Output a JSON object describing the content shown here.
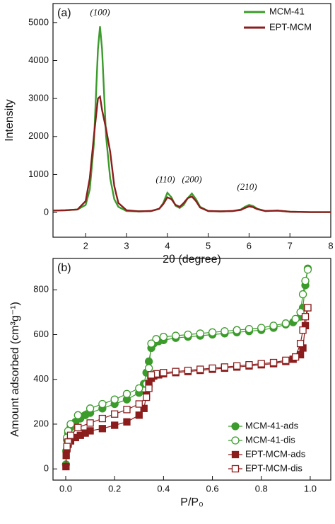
{
  "chart_data": [
    {
      "type": "line",
      "panel_label": "(a)",
      "x_label": "2θ (degree)",
      "y_label": "Intensity",
      "xlim": [
        1.2,
        8
      ],
      "ylim": [
        -650,
        5500
      ],
      "xticks": [
        2,
        3,
        4,
        5,
        6,
        7,
        8
      ],
      "yticks": [
        0,
        1000,
        2000,
        3000,
        4000,
        5000
      ],
      "legend": "upper right",
      "annotations": [
        {
          "text": "(100)",
          "x": 2.35,
          "y": 5250
        },
        {
          "text": "(110)",
          "x": 3.95,
          "y": 850
        },
        {
          "text": "(200)",
          "x": 4.6,
          "y": 850
        },
        {
          "text": "(210)",
          "x": 5.95,
          "y": 650
        }
      ],
      "x": [
        1.2,
        1.5,
        1.8,
        2.0,
        2.1,
        2.2,
        2.3,
        2.35,
        2.4,
        2.5,
        2.6,
        2.7,
        2.8,
        3.0,
        3.3,
        3.6,
        3.8,
        3.9,
        4.0,
        4.1,
        4.2,
        4.3,
        4.4,
        4.5,
        4.6,
        4.7,
        4.8,
        5.0,
        5.3,
        5.6,
        5.8,
        5.9,
        6.0,
        6.1,
        6.2,
        6.4,
        6.7,
        7.0,
        7.5,
        8.0
      ],
      "series": [
        {
          "name": "MCM-41",
          "color": "#3b9b2b",
          "values": [
            50,
            60,
            80,
            200,
            600,
            1800,
            4300,
            4900,
            4300,
            2000,
            900,
            350,
            150,
            40,
            30,
            40,
            100,
            250,
            520,
            400,
            180,
            120,
            200,
            380,
            500,
            350,
            150,
            40,
            30,
            40,
            80,
            150,
            200,
            170,
            100,
            40,
            50,
            20,
            10,
            10
          ]
        },
        {
          "name": "EPT-MCM",
          "color": "#8b1d1d",
          "values": [
            50,
            60,
            80,
            300,
            900,
            2000,
            3000,
            3050,
            2700,
            2200,
            1600,
            700,
            250,
            60,
            30,
            40,
            100,
            220,
            400,
            350,
            200,
            150,
            250,
            380,
            420,
            300,
            130,
            40,
            30,
            40,
            70,
            120,
            160,
            140,
            90,
            40,
            50,
            20,
            10,
            10
          ]
        }
      ]
    },
    {
      "type": "scatter",
      "panel_label": "(b)",
      "x_label": "P/P₀",
      "y_label": "Amount adsorbed (cm³g⁻¹)",
      "xlim": [
        -0.052,
        1.084
      ],
      "ylim": [
        -50,
        940
      ],
      "xticks": [
        {
          "value": 0,
          "label": "0.0"
        },
        0.2,
        0.4,
        0.6,
        0.8,
        {
          "value": 1,
          "label": "1.0"
        }
      ],
      "yticks": [
        0,
        200,
        400,
        600,
        800
      ],
      "legend": "lower right",
      "series": [
        {
          "name": "MCM-41-ads",
          "color": "#3b9b2b",
          "marker": "circle",
          "filled": true,
          "x": [
            0.001,
            0.002,
            0.005,
            0.01,
            0.02,
            0.04,
            0.06,
            0.08,
            0.1,
            0.15,
            0.2,
            0.25,
            0.3,
            0.32,
            0.33,
            0.34,
            0.35,
            0.36,
            0.38,
            0.4,
            0.45,
            0.5,
            0.55,
            0.6,
            0.65,
            0.7,
            0.75,
            0.8,
            0.85,
            0.9,
            0.93,
            0.96,
            0.97,
            0.98,
            0.99
          ],
          "values": [
            20,
            80,
            130,
            160,
            185,
            210,
            225,
            240,
            250,
            270,
            290,
            310,
            340,
            380,
            430,
            480,
            540,
            560,
            570,
            575,
            585,
            590,
            595,
            600,
            605,
            610,
            615,
            620,
            630,
            645,
            655,
            680,
            720,
            820,
            895
          ]
        },
        {
          "name": "MCM-41-dis",
          "color": "#3b9b2b",
          "marker": "circle",
          "filled": false,
          "x": [
            0.99,
            0.98,
            0.97,
            0.96,
            0.94,
            0.9,
            0.85,
            0.8,
            0.75,
            0.7,
            0.65,
            0.6,
            0.55,
            0.5,
            0.45,
            0.4,
            0.37,
            0.35,
            0.34,
            0.33,
            0.3,
            0.25,
            0.2,
            0.15,
            0.1,
            0.05,
            0.02,
            0.01,
            0.005
          ],
          "values": [
            890,
            840,
            780,
            700,
            670,
            650,
            640,
            630,
            625,
            620,
            615,
            610,
            605,
            600,
            595,
            590,
            580,
            560,
            450,
            380,
            360,
            335,
            310,
            290,
            270,
            240,
            200,
            170,
            140
          ]
        },
        {
          "name": "EPT-MCM-ads",
          "color": "#8b1d1d",
          "marker": "square",
          "filled": true,
          "x": [
            0.001,
            0.002,
            0.005,
            0.01,
            0.02,
            0.04,
            0.06,
            0.08,
            0.1,
            0.15,
            0.2,
            0.25,
            0.3,
            0.32,
            0.33,
            0.34,
            0.35,
            0.36,
            0.38,
            0.4,
            0.45,
            0.5,
            0.55,
            0.6,
            0.65,
            0.7,
            0.75,
            0.8,
            0.85,
            0.9,
            0.93,
            0.96,
            0.97,
            0.98,
            0.99
          ],
          "values": [
            10,
            60,
            90,
            110,
            125,
            140,
            150,
            160,
            170,
            180,
            195,
            210,
            240,
            270,
            330,
            380,
            405,
            415,
            420,
            425,
            430,
            435,
            440,
            445,
            450,
            455,
            460,
            465,
            470,
            480,
            490,
            510,
            540,
            640,
            720
          ]
        },
        {
          "name": "EPT-MCM-dis",
          "color": "#8b1d1d",
          "marker": "square",
          "filled": false,
          "x": [
            0.99,
            0.98,
            0.97,
            0.96,
            0.94,
            0.9,
            0.85,
            0.8,
            0.75,
            0.7,
            0.65,
            0.6,
            0.55,
            0.5,
            0.45,
            0.4,
            0.37,
            0.35,
            0.34,
            0.33,
            0.3,
            0.25,
            0.2,
            0.15,
            0.1,
            0.05,
            0.02,
            0.01,
            0.005
          ],
          "values": [
            720,
            680,
            620,
            560,
            500,
            485,
            475,
            470,
            465,
            460,
            455,
            450,
            445,
            440,
            435,
            430,
            425,
            420,
            360,
            320,
            290,
            265,
            245,
            225,
            205,
            185,
            150,
            120,
            100
          ]
        }
      ]
    }
  ]
}
